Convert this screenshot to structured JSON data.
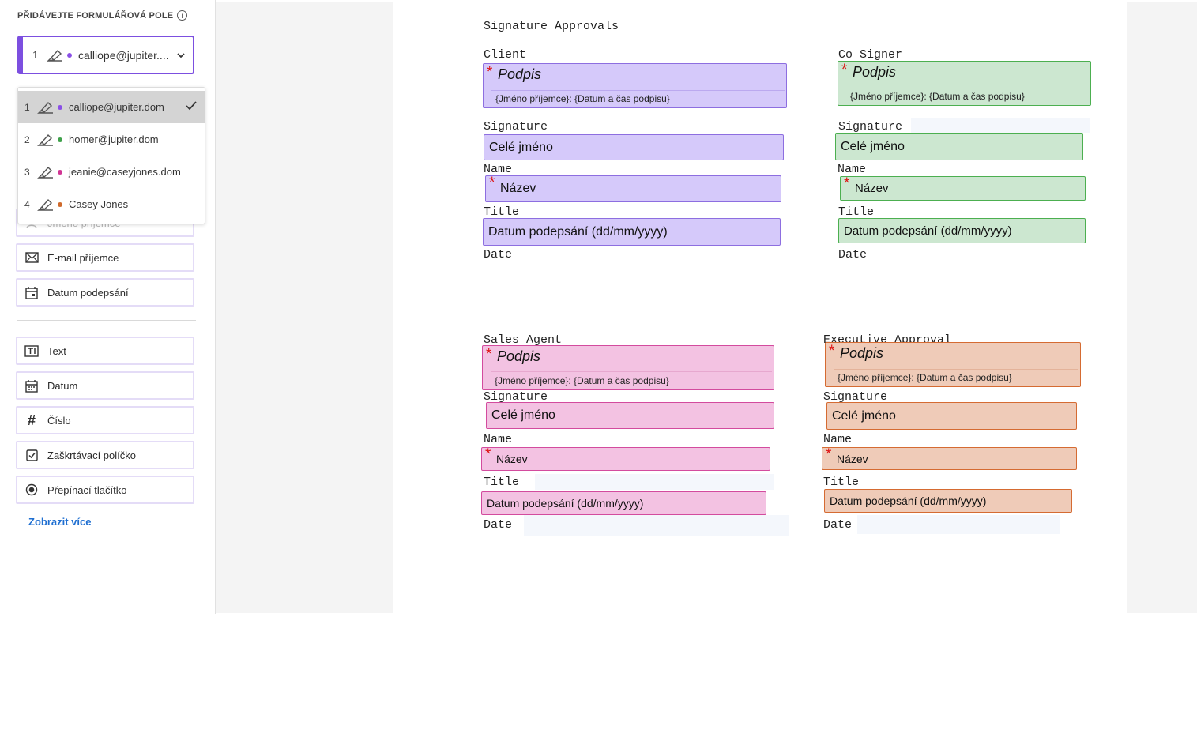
{
  "sidebar": {
    "title": "PŘIDÁVEJTE FORMULÁŘOVÁ POLE",
    "info_icon": "i",
    "selected_recipient": {
      "number": "1",
      "label": "calliope@jupiter...."
    },
    "recipients": [
      {
        "number": "1",
        "label": "calliope@jupiter.dom",
        "color": "#8a4fe6",
        "selected": true
      },
      {
        "number": "2",
        "label": "homer@jupiter.dom",
        "color": "#3fa14b"
      },
      {
        "number": "3",
        "label": "jeanie@caseyjones.dom",
        "color": "#d13594"
      },
      {
        "number": "4",
        "label": "Casey Jones",
        "color": "#cf6a2c"
      }
    ],
    "recipient_fields": [
      {
        "label": "Jméno příjemce",
        "icon": "user-icon"
      },
      {
        "label": "E-mail příjemce",
        "icon": "mail-icon"
      },
      {
        "label": "Datum podepsání",
        "icon": "calendar-sign-icon"
      }
    ],
    "fields": [
      {
        "label": "Text",
        "icon": "text-field-icon"
      },
      {
        "label": "Datum",
        "icon": "calendar-icon"
      },
      {
        "label": "Číslo",
        "icon": "hash-icon"
      },
      {
        "label": "Zaškrtávací políčko",
        "icon": "checkbox-icon"
      },
      {
        "label": "Přepínací tlačítko",
        "icon": "radio-icon"
      }
    ],
    "show_more": "Zobrazit více"
  },
  "document": {
    "heading": "Signature Approvals",
    "labels": {
      "signature": "Signature",
      "name": "Name",
      "title": "Title",
      "date": "Date"
    },
    "field_text": {
      "signature": "Podpis",
      "signature_sub": "{Jméno příjemce}: {Datum a čas podpisu}",
      "full_name": "Celé jméno",
      "title": "Název",
      "date": "Datum podepsání (dd/mm/yyyy)",
      "required_mark": "*"
    },
    "blocks": [
      {
        "heading": "Client",
        "color": "purple"
      },
      {
        "heading": "Co Signer",
        "color": "green"
      },
      {
        "heading": "Sales Agent",
        "color": "pink"
      },
      {
        "heading": "Executive Approval",
        "color": "orange"
      }
    ]
  }
}
